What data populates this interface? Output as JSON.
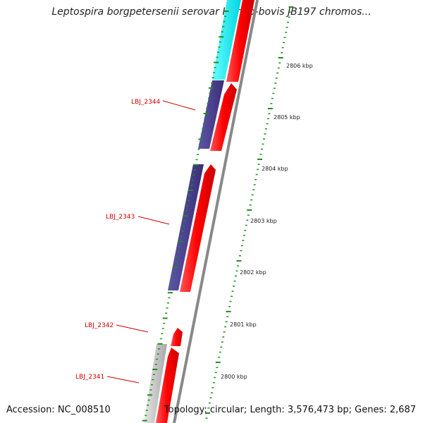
{
  "title": "Leptospira borgpetersenii serovar Hardjo-bovis JB197 chromos...",
  "footer": {
    "accession": "Accession: NC_008510",
    "summary": "Topology: circular; Length: 3,576,473 bp; Genes: 2,687"
  },
  "colors": {
    "forward_cds": "#ff0000",
    "reverse_cds_blue": "#4b3f8f",
    "reverse_cds_cyan": "#00e5ee",
    "pseudogene": "#c0c0c0",
    "backbone": "#888888",
    "ticks": "#228b22",
    "gene_label": "#cc0000"
  },
  "kbp_labels": [
    "2806 kbp",
    "2805 kbp",
    "2804 kbp",
    "2803 kbp",
    "2802 kbp",
    "2801 kbp",
    "2800 kbp"
  ],
  "gene_labels": [
    "LBJ_2344",
    "LBJ_2343",
    "LBJ_2342",
    "LBJ_2341"
  ]
}
